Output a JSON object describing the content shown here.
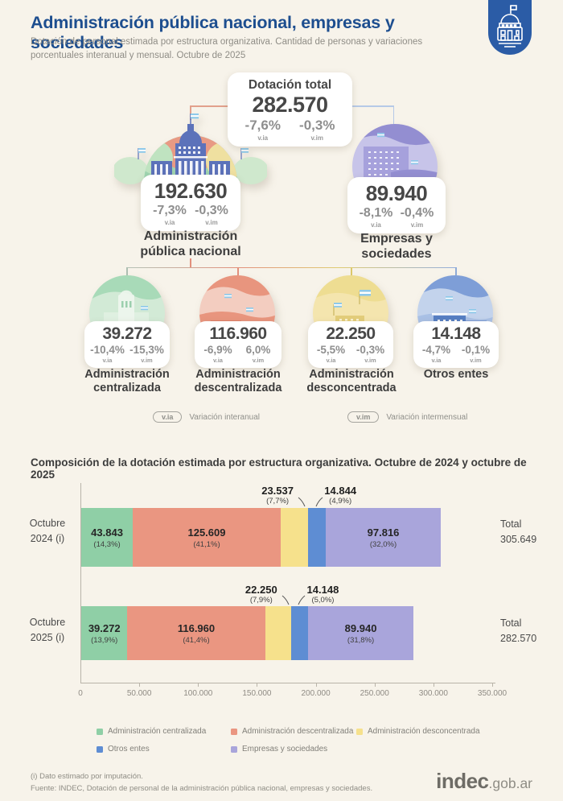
{
  "header": {
    "title": "Administración pública nacional, empresas y sociedades",
    "subtitle": "Dotación de personal estimada por estructura organizativa. Cantidad de personas y variaciones porcentuales interanual y mensual. Octubre de 2025"
  },
  "tree": {
    "total": {
      "title": "Dotación total",
      "value": "282.570",
      "via": "-7,6%",
      "vim": "-0,3%"
    },
    "via_tag": "v.ia",
    "vim_tag": "v.im",
    "branches": [
      {
        "value": "192.630",
        "via": "-7,3%",
        "vim": "-0,3%",
        "label_lines": [
          "Administración",
          "pública nacional"
        ]
      },
      {
        "value": "89.940",
        "via": "-8,1%",
        "vim": "-0,4%",
        "label_lines": [
          "Empresas y",
          "sociedades"
        ]
      }
    ],
    "children": [
      {
        "value": "39.272",
        "via": "-10,4%",
        "vim": "-15,3%",
        "label_lines": [
          "Administración",
          "centralizada"
        ]
      },
      {
        "value": "116.960",
        "via": "-6,9%",
        "vim": "6,0%",
        "label_lines": [
          "Administración",
          "descentralizada"
        ]
      },
      {
        "value": "22.250",
        "via": "-5,5%",
        "vim": "-0,3%",
        "label_lines": [
          "Administración",
          "desconcentrada"
        ]
      },
      {
        "value": "14.148",
        "via": "-4,7%",
        "vim": "-0,1%",
        "label_lines": [
          "Otros entes",
          ""
        ]
      }
    ],
    "legend": [
      {
        "tag": "v.ia",
        "text": "Variación interanual"
      },
      {
        "tag": "v.im",
        "text": "Variación intermensual"
      }
    ]
  },
  "chart_data": {
    "type": "bar",
    "stacked": true,
    "orientation": "horizontal",
    "title": "Composición de la dotación estimada por estructura organizativa. Octubre de 2024 y octubre de 2025",
    "categories": [
      "Octubre 2024 (i)",
      "Octubre 2025 (i)"
    ],
    "row_labels": [
      [
        "Octubre",
        "2024 (i)"
      ],
      [
        "Octubre",
        "2025 (i)"
      ]
    ],
    "series": [
      {
        "name": "Administración centralizada",
        "color": "#8fcfa6",
        "values": [
          43843,
          39272
        ],
        "labels": [
          "43.843",
          "39.272"
        ],
        "pcts": [
          "(14,3%)",
          "(13,9%)"
        ]
      },
      {
        "name": "Administración descentralizada",
        "color": "#ea9681",
        "values": [
          125609,
          116960
        ],
        "labels": [
          "125.609",
          "116.960"
        ],
        "pcts": [
          "(41,1%)",
          "(41,4%)"
        ]
      },
      {
        "name": "Administración desconcentrada",
        "color": "#f6e18c",
        "values": [
          23537,
          22250
        ],
        "labels": [
          "23.537",
          "22.250"
        ],
        "pcts": [
          "(7,7%)",
          "(7,9%)"
        ]
      },
      {
        "name": "Otros entes",
        "color": "#5e8dd3",
        "values": [
          14844,
          14148
        ],
        "labels": [
          "14.844",
          "14.148"
        ],
        "pcts": [
          "(4,9%)",
          "(5,0%)"
        ]
      },
      {
        "name": "Empresas y sociedades",
        "color": "#a9a5db",
        "values": [
          97816,
          89940
        ],
        "labels": [
          "97.816",
          "89.940"
        ],
        "pcts": [
          "(32,0%)",
          "(31,8%)"
        ]
      }
    ],
    "totals": {
      "label": "Total",
      "values": [
        "305.649",
        "282.570"
      ]
    },
    "x_axis": {
      "ticks": [
        "0",
        "50.000",
        "100.000",
        "150.000",
        "200.000",
        "250.000",
        "300.000",
        "350.000"
      ],
      "max": 350000
    },
    "outside_label_series": [
      2,
      3
    ],
    "legend_position": "bottom",
    "grid": false
  },
  "footer": {
    "note": "(i) Dato estimado por imputación.",
    "source": "Fuente: INDEC, Dotación de personal de la administración pública nacional, empresas y sociedades.",
    "logo_main": "indec",
    "logo_suffix": ".gob.ar"
  }
}
